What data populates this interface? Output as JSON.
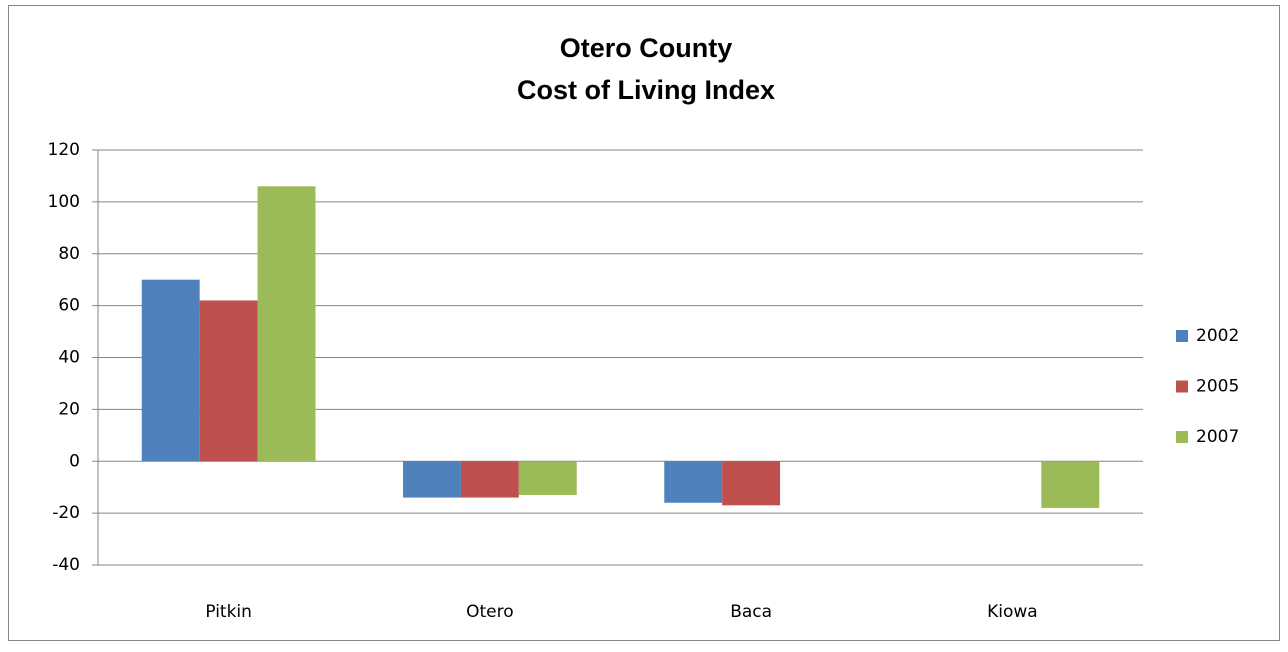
{
  "chart_data": {
    "type": "bar",
    "title": [
      "Otero County",
      "Cost of Living Index"
    ],
    "categories": [
      "Pitkin",
      "Otero",
      "Baca",
      "Kiowa"
    ],
    "series": [
      {
        "name": "2002",
        "color": "#4f81bd",
        "values": [
          70,
          -14,
          -16,
          null
        ]
      },
      {
        "name": "2005",
        "color": "#c0504d",
        "values": [
          62,
          -14,
          -17,
          null
        ]
      },
      {
        "name": "2007",
        "color": "#9bbb59",
        "values": [
          106,
          -13,
          null,
          -18
        ]
      }
    ],
    "ylim": [
      -40,
      120
    ],
    "yticks": [
      -40,
      -20,
      0,
      20,
      40,
      60,
      80,
      100,
      120
    ],
    "grid": true,
    "legend": "right"
  }
}
